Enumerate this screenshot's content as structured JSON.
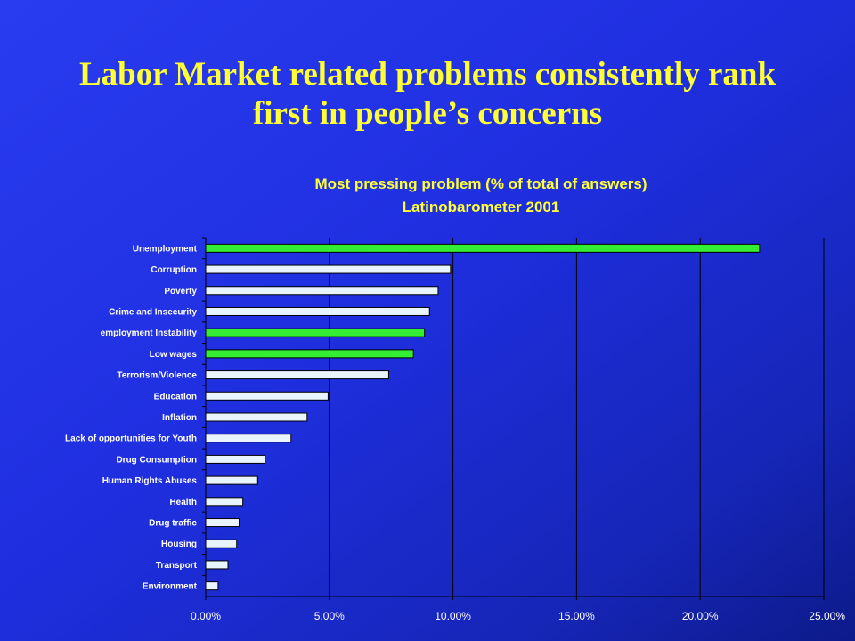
{
  "slide": {
    "title_line1": "Labor Market related problems consistently rank",
    "title_line2": "first in people’s concerns"
  },
  "chart_data": {
    "type": "bar",
    "orientation": "horizontal",
    "title": "Most pressing problem (% of total of answers)",
    "subtitle": "Latinobarometer 2001",
    "categories": [
      "Unemployment",
      "Corruption",
      "Poverty",
      "Crime and Insecurity",
      "employment Instability",
      "Low wages",
      "Terrorism/Violence",
      "Education",
      "Inflation",
      "Lack of opportunities for Youth",
      "Drug Consumption",
      "Human Rights Abuses",
      "Health",
      "Drug traffic",
      "Housing",
      "Transport",
      "Environment"
    ],
    "values": [
      22.4,
      9.9,
      9.4,
      9.05,
      8.85,
      8.4,
      7.4,
      4.95,
      4.1,
      3.45,
      2.4,
      2.1,
      1.5,
      1.35,
      1.25,
      0.9,
      0.5
    ],
    "highlighted": [
      "Unemployment",
      "employment Instability",
      "Low wages"
    ],
    "xlim": [
      0,
      25
    ],
    "xticks": [
      0,
      5,
      10,
      15,
      20,
      25
    ],
    "xtick_labels": [
      "0.00%",
      "5.00%",
      "10.00%",
      "15.00%",
      "20.00%",
      "25.00%"
    ],
    "grid": "vertical",
    "colors": {
      "highlight_bar": "#33ee33",
      "default_bar": "#e8f4ff",
      "bar_outline": "#000000",
      "grid": "#000000",
      "text": "#ffffff",
      "title": "#ffff33"
    }
  }
}
